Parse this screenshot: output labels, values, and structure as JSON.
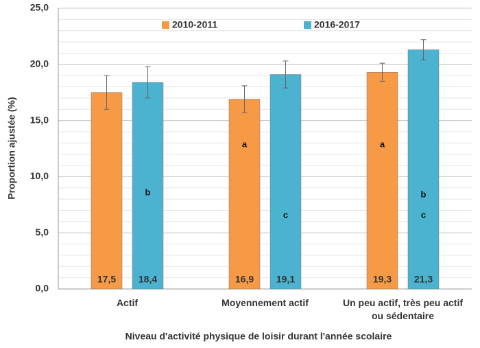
{
  "chart_data": {
    "type": "bar",
    "x_label": "Niveau d'activité physique de loisir durant l'année scolaire",
    "y_label": "Proportion ajustée (%)",
    "categories": [
      "Actif",
      "Moyennement actif",
      "Un peu actif, très peu actif ou sédentaire"
    ],
    "series": [
      {
        "name": "2010-2011",
        "color": "#f79a45",
        "values": [
          17.5,
          16.9,
          19.3
        ],
        "value_labels": [
          "17,5",
          "16,9",
          "19,3"
        ],
        "errors": [
          1.5,
          1.2,
          0.8
        ],
        "letters": [
          [],
          [
            "a"
          ],
          [
            "a"
          ]
        ]
      },
      {
        "name": "2016-2017",
        "color": "#4bb3cf",
        "values": [
          18.4,
          19.1,
          21.3
        ],
        "value_labels": [
          "18,4",
          "19,1",
          "21,3"
        ],
        "errors": [
          1.4,
          1.2,
          0.9
        ],
        "letters": [
          [
            "b"
          ],
          [
            "c"
          ],
          [
            "b",
            "c"
          ]
        ]
      }
    ],
    "ylim": [
      0,
      25
    ],
    "yticks": [
      {
        "value": 0,
        "label": "0,0"
      },
      {
        "value": 5,
        "label": "5,0"
      },
      {
        "value": 10,
        "label": "10,0"
      },
      {
        "value": 15,
        "label": "15,0"
      },
      {
        "value": 20,
        "label": "20,0"
      },
      {
        "value": 25,
        "label": "25,0"
      }
    ],
    "grid": true,
    "minor_grid_step": 1,
    "legend": "top"
  }
}
